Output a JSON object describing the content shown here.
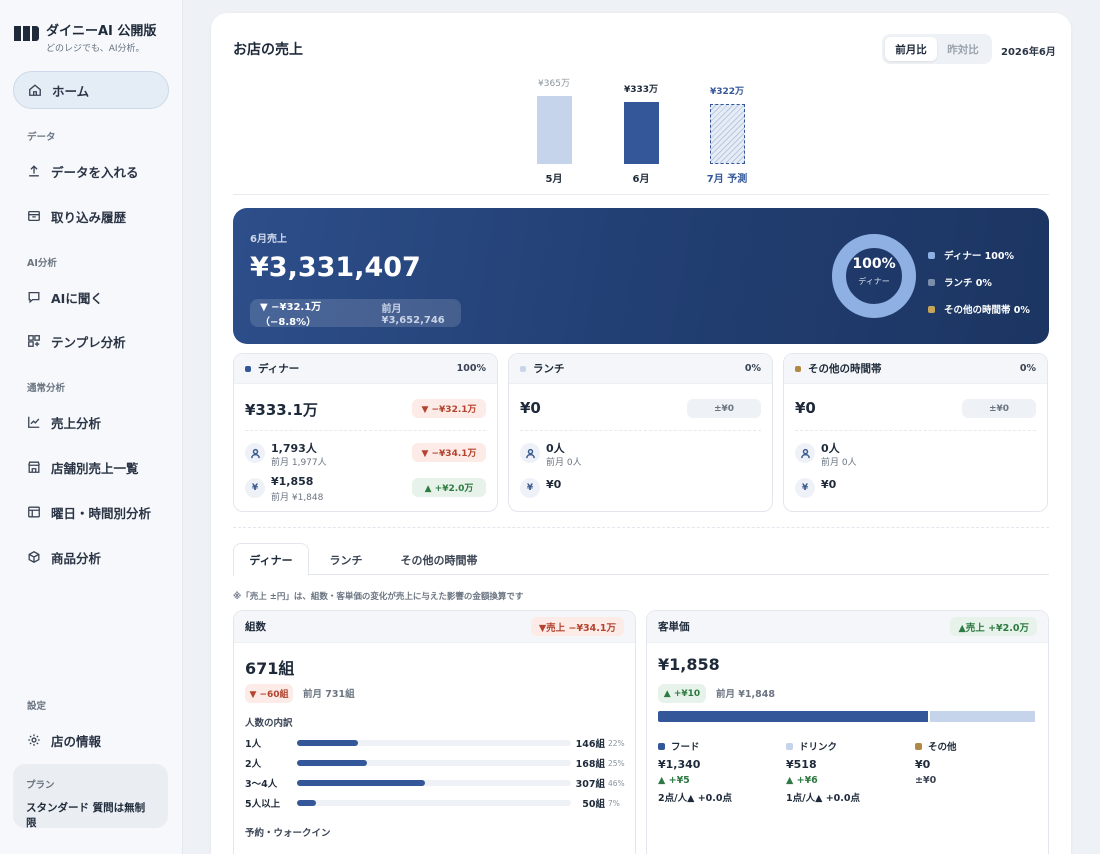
{
  "brand": {
    "name": "ダイニーAI 公開版",
    "tagline": "どのレジでも、AI分析。"
  },
  "nav": {
    "home": "ホーム",
    "section_data": "データ",
    "upload": "データを入れる",
    "import_history": "取り込み履歴",
    "section_ai": "AI分析",
    "ask_ai": "AIに聞く",
    "template": "テンプレ分析",
    "section_normal": "通常分析",
    "sales": "売上分析",
    "by_store": "店舗別売上一覧",
    "by_time": "曜日・時間別分析",
    "products": "商品分析",
    "section_settings": "設定",
    "store_info": "店の情報"
  },
  "plan": {
    "label": "プラン",
    "value": "スタンダード 質問は無制限"
  },
  "header": {
    "title": "お店の売上",
    "toggle_mom": "前月比",
    "toggle_yoy": "昨対比",
    "period": "2026年6月"
  },
  "mini_chart": {
    "bars": [
      {
        "label": "5月",
        "value_label": "¥365万",
        "value": 365,
        "type": "past"
      },
      {
        "label": "6月",
        "value_label": "¥333万",
        "value": 333,
        "type": "current"
      },
      {
        "label": "7月 予測",
        "value_label": "¥322万",
        "value": 322,
        "type": "forecast"
      }
    ],
    "colors": {
      "past": "#c5d4ea",
      "current": "#34579a",
      "forecast": "#34579a"
    }
  },
  "hero": {
    "label": "6月売上",
    "value": "¥3,331,407",
    "change": "▼ −¥32.1万（−8.8%）",
    "prev": "前月 ¥3,652,746",
    "donut_pct": "100%",
    "donut_sub": "ディナー",
    "donut_fraction": 1.0,
    "legend": [
      {
        "label": "ディナー 100%",
        "color": "#8fb0e3"
      },
      {
        "label": "ランチ 0%",
        "color": "#7c8cab"
      },
      {
        "label": "その他の時間帯 0%",
        "color": "#c7a65a"
      }
    ]
  },
  "segments": [
    {
      "name": "ディナー",
      "pct": "100%",
      "color": "#34579a",
      "amount": "¥333.1万",
      "amount_chip": "▼ −¥32.1万",
      "amount_chip_tone": "red",
      "customers": "1,793人",
      "customers_prev": "前月 1,977人",
      "customers_chip": "▼ −¥34.1万",
      "customers_chip_tone": "red",
      "unit_price": "¥1,858",
      "unit_price_prev": "前月 ¥1,848",
      "unit_price_chip": "▲ +¥2.0万",
      "unit_price_chip_tone": "green"
    },
    {
      "name": "ランチ",
      "pct": "0%",
      "color": "#c9d6ea",
      "amount": "¥0",
      "amount_chip": "±¥0",
      "amount_chip_tone": "gray",
      "customers": "0人",
      "customers_prev": "前月 0人",
      "unit_price": "¥0"
    },
    {
      "name": "その他の時間帯",
      "pct": "0%",
      "color": "#b08a45",
      "amount": "¥0",
      "amount_chip": "±¥0",
      "amount_chip_tone": "gray",
      "customers": "0人",
      "customers_prev": "前月 0人",
      "unit_price": "¥0"
    }
  ],
  "tabs": [
    "ディナー",
    "ランチ",
    "その他の時間帯"
  ],
  "note": "※「売上 ±円」は、組数・客単価の変化が売上に与えた影響の金額換算です",
  "groups_card": {
    "title": "組数",
    "badge": "▼売上 −¥34.1万",
    "value": "671組",
    "chip": "▼ −60組",
    "prev": "前月 731組",
    "breakdown_title": "人数の内訳",
    "rows": [
      {
        "label": "1人",
        "value": "146組",
        "pct": "22%",
        "fraction": 0.22
      },
      {
        "label": "2人",
        "value": "168組",
        "pct": "25%",
        "fraction": 0.25
      },
      {
        "label": "3〜4人",
        "value": "307組",
        "pct": "46%",
        "fraction": 0.46
      },
      {
        "label": "5人以上",
        "value": "50組",
        "pct": "7%",
        "fraction": 0.07
      }
    ],
    "reservation_title": "予約・ウォークイン"
  },
  "unit_card": {
    "title": "客単価",
    "badge": "▲売上 +¥2.0万",
    "value": "¥1,858",
    "chip": "▲ +¥10",
    "prev": "前月 ¥1,848",
    "stack": [
      {
        "fraction": 0.72,
        "color": "#34579a"
      },
      {
        "fraction": 0.28,
        "color": "#c5d4ea"
      },
      {
        "fraction": 0.0,
        "color": "#b08a45"
      }
    ],
    "parts": [
      {
        "name": "フード",
        "color": "#34579a",
        "amount": "¥1,340",
        "change": "▲ +¥5",
        "unit": "2点/人▲ +0.0点"
      },
      {
        "name": "ドリンク",
        "color": "#c5d4ea",
        "amount": "¥518",
        "change": "▲ +¥6",
        "unit": "1点/人▲ +0.0点"
      },
      {
        "name": "その他",
        "color": "#b08a45",
        "amount": "¥0",
        "change": "±¥0",
        "unit": ""
      }
    ]
  }
}
